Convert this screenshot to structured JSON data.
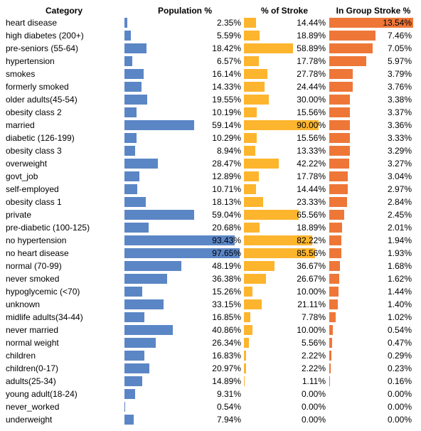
{
  "headers": {
    "category": "Category",
    "population": "Population %",
    "stroke": "% of Stroke",
    "in_group": "In Group Stroke %"
  },
  "colors": {
    "population": "#5b86c6",
    "stroke": "#fdb52e",
    "in_group": "#ee7738"
  },
  "chart_data": {
    "type": "table",
    "columns": [
      "Category",
      "Population %",
      "% of Stroke",
      "In Group Stroke %"
    ],
    "scales": {
      "population_max": 100,
      "stroke_max": 100,
      "in_group_max": 13.54
    },
    "rows": [
      {
        "category": "heart disease",
        "population": 2.35,
        "stroke": 14.44,
        "in_group": 13.54
      },
      {
        "category": "high diabetes (200+)",
        "population": 5.59,
        "stroke": 18.89,
        "in_group": 7.46
      },
      {
        "category": "pre-seniors (55-64)",
        "population": 18.42,
        "stroke": 58.89,
        "in_group": 7.05
      },
      {
        "category": "hypertension",
        "population": 6.57,
        "stroke": 17.78,
        "in_group": 5.97
      },
      {
        "category": "smokes",
        "population": 16.14,
        "stroke": 27.78,
        "in_group": 3.79
      },
      {
        "category": "formerly smoked",
        "population": 14.33,
        "stroke": 24.44,
        "in_group": 3.76
      },
      {
        "category": "older adults(45-54)",
        "population": 19.55,
        "stroke": 30.0,
        "in_group": 3.38
      },
      {
        "category": "obesity class 2",
        "population": 10.19,
        "stroke": 15.56,
        "in_group": 3.37
      },
      {
        "category": "married",
        "population": 59.14,
        "stroke": 90.0,
        "in_group": 3.36
      },
      {
        "category": "diabetic (126-199)",
        "population": 10.29,
        "stroke": 15.56,
        "in_group": 3.33
      },
      {
        "category": "obesity class 3",
        "population": 8.94,
        "stroke": 13.33,
        "in_group": 3.29
      },
      {
        "category": "overweight",
        "population": 28.47,
        "stroke": 42.22,
        "in_group": 3.27
      },
      {
        "category": "govt_job",
        "population": 12.89,
        "stroke": 17.78,
        "in_group": 3.04
      },
      {
        "category": "self-employed",
        "population": 10.71,
        "stroke": 14.44,
        "in_group": 2.97
      },
      {
        "category": "obesity class 1",
        "population": 18.13,
        "stroke": 23.33,
        "in_group": 2.84
      },
      {
        "category": "private",
        "population": 59.04,
        "stroke": 65.56,
        "in_group": 2.45
      },
      {
        "category": "pre-diabetic (100-125)",
        "population": 20.68,
        "stroke": 18.89,
        "in_group": 2.01
      },
      {
        "category": "no hypertension",
        "population": 93.43,
        "stroke": 82.22,
        "in_group": 1.94
      },
      {
        "category": "no heart disease",
        "population": 97.65,
        "stroke": 85.56,
        "in_group": 1.93
      },
      {
        "category": "normal (70-99)",
        "population": 48.19,
        "stroke": 36.67,
        "in_group": 1.68
      },
      {
        "category": "never smoked",
        "population": 36.38,
        "stroke": 26.67,
        "in_group": 1.62
      },
      {
        "category": "hypoglycemic (<70)",
        "population": 15.26,
        "stroke": 10.0,
        "in_group": 1.44
      },
      {
        "category": "unknown",
        "population": 33.15,
        "stroke": 21.11,
        "in_group": 1.4
      },
      {
        "category": "midlife adults(34-44)",
        "population": 16.85,
        "stroke": 7.78,
        "in_group": 1.02
      },
      {
        "category": "never married",
        "population": 40.86,
        "stroke": 10.0,
        "in_group": 0.54
      },
      {
        "category": "normal weight",
        "population": 26.34,
        "stroke": 5.56,
        "in_group": 0.47
      },
      {
        "category": "children",
        "population": 16.83,
        "stroke": 2.22,
        "in_group": 0.29
      },
      {
        "category": "children(0-17)",
        "population": 20.97,
        "stroke": 2.22,
        "in_group": 0.23
      },
      {
        "category": "adults(25-34)",
        "population": 14.89,
        "stroke": 1.11,
        "in_group": 0.16
      },
      {
        "category": "young adult(18-24)",
        "population": 9.31,
        "stroke": 0.0,
        "in_group": 0.0
      },
      {
        "category": "never_worked",
        "population": 0.54,
        "stroke": 0.0,
        "in_group": 0.0
      },
      {
        "category": "underweight",
        "population": 7.94,
        "stroke": 0.0,
        "in_group": 0.0
      }
    ]
  }
}
